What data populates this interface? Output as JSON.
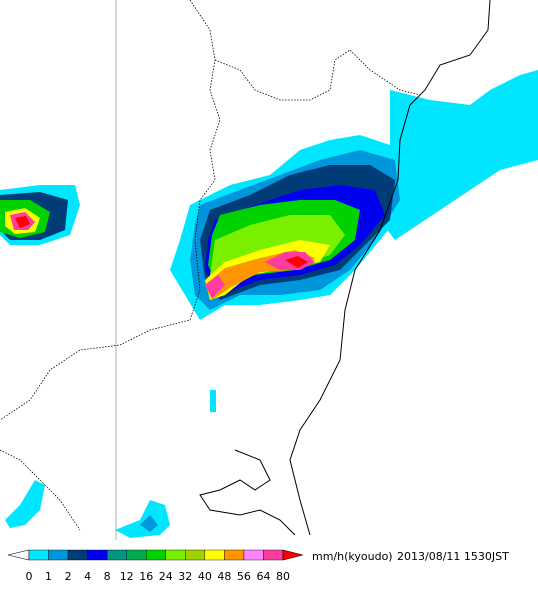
{
  "legend": {
    "unit": "mm/h(kyoudo)",
    "timestamp": "2013/08/11 1530JST",
    "levels": [
      0,
      1,
      2,
      4,
      8,
      12,
      16,
      24,
      32,
      40,
      48,
      56,
      64,
      80
    ],
    "colors": [
      "#ffffff",
      "#00e6ff",
      "#0096dc",
      "#003c78",
      "#0000f0",
      "#009682",
      "#00aa50",
      "#00d200",
      "#78f000",
      "#a0d200",
      "#ffff00",
      "#ff9600",
      "#ff82ff",
      "#ff3ca0",
      "#ff0000"
    ]
  }
}
